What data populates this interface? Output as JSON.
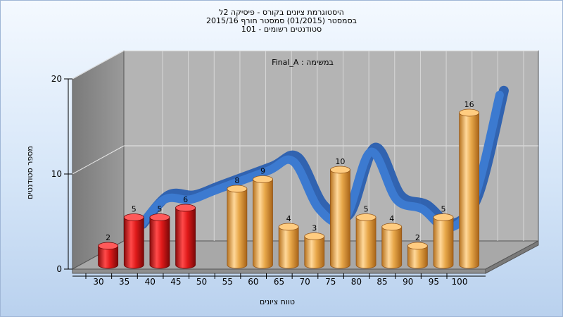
{
  "titles": [
    "היסטוגרמת ציונים בקורס - פיסיקה 2ל",
    "בסמסטר  (01/2015)  סמסטר חורף 2015/16",
    "101 - סטודנטים רשומים"
  ],
  "colors": {
    "fail": "#e01a1a",
    "pass": "#e8a84a",
    "curve": "#3c7ad0",
    "back_wall": "#b4b4b4",
    "side_wall": "#8c8c8c",
    "floor": "#a8a8a8"
  },
  "chart_data": {
    "type": "bar",
    "title": "היסטוגרמת ציונים בקורס - פיסיקה 2ל",
    "subtitle": "בסמסטר  (01/2015)  סמסטר חורף 2015/16",
    "annotation": "Final_A : במשימה",
    "xlabel": "טווח ציונים",
    "ylabel": "מספר סטודנטים",
    "ylim": [
      0,
      20
    ],
    "yticks": [
      0,
      10,
      20
    ],
    "categories": [
      "30",
      "35",
      "40",
      "45",
      "50",
      "55",
      "60",
      "65",
      "70",
      "75",
      "80",
      "85",
      "90",
      "95",
      "100"
    ],
    "bars": [
      {
        "x": 30,
        "value": 2,
        "group": "fail"
      },
      {
        "x": 35,
        "value": 5,
        "group": "fail"
      },
      {
        "x": 40,
        "value": 5,
        "group": "fail"
      },
      {
        "x": 45,
        "value": 6,
        "group": "fail"
      },
      {
        "x": 55,
        "value": 8,
        "group": "pass"
      },
      {
        "x": 60,
        "value": 9,
        "group": "pass"
      },
      {
        "x": 65,
        "value": 4,
        "group": "pass"
      },
      {
        "x": 70,
        "value": 3,
        "group": "pass"
      },
      {
        "x": 75,
        "value": 10,
        "group": "pass"
      },
      {
        "x": 80,
        "value": 5,
        "group": "pass"
      },
      {
        "x": 85,
        "value": 4,
        "group": "pass"
      },
      {
        "x": 90,
        "value": 2,
        "group": "pass"
      },
      {
        "x": 95,
        "value": 5,
        "group": "pass"
      },
      {
        "x": 100,
        "value": 16,
        "group": "pass"
      }
    ],
    "grid": true,
    "legend": "none"
  }
}
